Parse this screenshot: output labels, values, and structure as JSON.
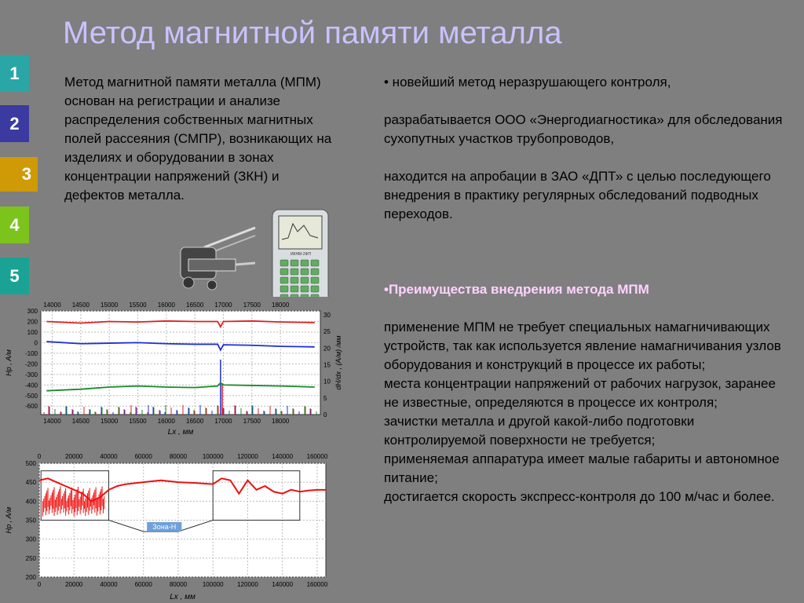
{
  "slide_title": "Метод магнитной памяти металла",
  "nav": [
    {
      "label": "1",
      "color": "#2aa6a6"
    },
    {
      "label": "2",
      "color": "#3a3aa0"
    },
    {
      "label": "3",
      "color": "#cf9a06"
    },
    {
      "label": "4",
      "color": "#7cc31c"
    },
    {
      "label": "5",
      "color": "#1aa394"
    }
  ],
  "left_paragraph": "Метод магнитной памяти металла (МПМ) основан на регистрации и анализе распределения собственных магнитных полей рассеяния (СМПР), возникающих на изделиях и оборудовании в зонах концентрации напряжений (ЗКН) и дефектов металла.",
  "right": {
    "bullet1": "• новейший метод неразрушающего контроля,",
    "p2": " разрабатывается ООО «Энергодиагностика» для обследования сухопутных участков трубопроводов,",
    "p3": " находится на апробации в ЗАО «ДПТ» с целью последующего внедрения в практику регулярных обследований подводных переходов.",
    "advantages_heading": "•Преимущества внедрения метода МПМ",
    "adv_items": [
      " применение МПМ не требует специальных намагничивающих устройств, так как используется явление намагничивания узлов оборудования и конструкций в процессе их работы;",
      " места концентрации напряжений от рабочих нагрузок, заранее не известные, определяются в процессе их контроля;",
      " зачистки металла и другой какой-либо подготовки контролируемой поверхности не требуется;",
      " применяемая аппаратура имеет малые габариты и автономное питание;",
      " достигается скорость экспресс-контроля до 100 м/час и более."
    ]
  },
  "device": {
    "screen_label": "ИКНМ-2ФП"
  },
  "chart_data": [
    {
      "type": "line",
      "title": "",
      "xlabel": "Lx , мм",
      "ylabel": "Hp , А/м",
      "ylabel_right": "dH/dx , (А/м) /мм",
      "xlim": [
        13800,
        18700
      ],
      "x_ticks": [
        "14000",
        "14500",
        "15000",
        "15500",
        "16000",
        "16500",
        "17000",
        "17500",
        "18000"
      ],
      "y_ticks": [
        "300",
        "200",
        "100",
        "0",
        "-100",
        "-200",
        "-300",
        "-400",
        "-500",
        "-600"
      ],
      "y_right_ticks": [
        "30",
        "25",
        "20",
        "15",
        "10",
        "5",
        "0"
      ],
      "ylim": [
        -680,
        300
      ],
      "series": [
        {
          "color": "#e02020",
          "x": [
            13900,
            14500,
            15000,
            15500,
            16000,
            16500,
            16900,
            16950,
            17000,
            17500,
            18000,
            18600
          ],
          "y": [
            200,
            185,
            200,
            195,
            205,
            200,
            200,
            150,
            200,
            205,
            195,
            190
          ]
        },
        {
          "color": "#1f2fd6",
          "x": [
            13900,
            14500,
            15000,
            15500,
            16000,
            16500,
            16900,
            16950,
            17000,
            17500,
            18000,
            18600
          ],
          "y": [
            10,
            -10,
            -5,
            0,
            -10,
            -15,
            -15,
            -70,
            -20,
            -25,
            -35,
            -40
          ]
        },
        {
          "color": "#1a8a2a",
          "x": [
            13900,
            14500,
            15000,
            15500,
            16000,
            16500,
            16900,
            16950,
            17000,
            17500,
            18000,
            18600
          ],
          "y": [
            -455,
            -440,
            -420,
            -410,
            -420,
            -425,
            -410,
            -380,
            -400,
            -405,
            -410,
            -420
          ]
        }
      ]
    },
    {
      "type": "line",
      "title": "",
      "xlabel": "Lx , мм",
      "ylabel": "Hp , А/м",
      "xlim": [
        0,
        165000
      ],
      "x_ticks": [
        "0",
        "20000",
        "40000",
        "60000",
        "80000",
        "100000",
        "120000",
        "140000",
        "160000"
      ],
      "y_ticks": [
        "500",
        "450",
        "400",
        "350",
        "300",
        "250",
        "200"
      ],
      "ylim": [
        200,
        500
      ],
      "annotation": "Зона-Н",
      "series": [
        {
          "color": "#ee1010",
          "x": [
            0,
            5000,
            10000,
            15000,
            20000,
            25000,
            30000,
            35000,
            40000,
            45000,
            50000,
            60000,
            70000,
            80000,
            90000,
            100000,
            105000,
            110000,
            115000,
            120000,
            125000,
            130000,
            135000,
            140000,
            145000,
            150000,
            155000,
            160000,
            165000
          ],
          "y": [
            455,
            460,
            450,
            440,
            430,
            420,
            400,
            410,
            430,
            440,
            445,
            450,
            455,
            450,
            448,
            445,
            460,
            455,
            420,
            455,
            430,
            440,
            425,
            420,
            430,
            425,
            428,
            430,
            430
          ]
        }
      ]
    }
  ]
}
